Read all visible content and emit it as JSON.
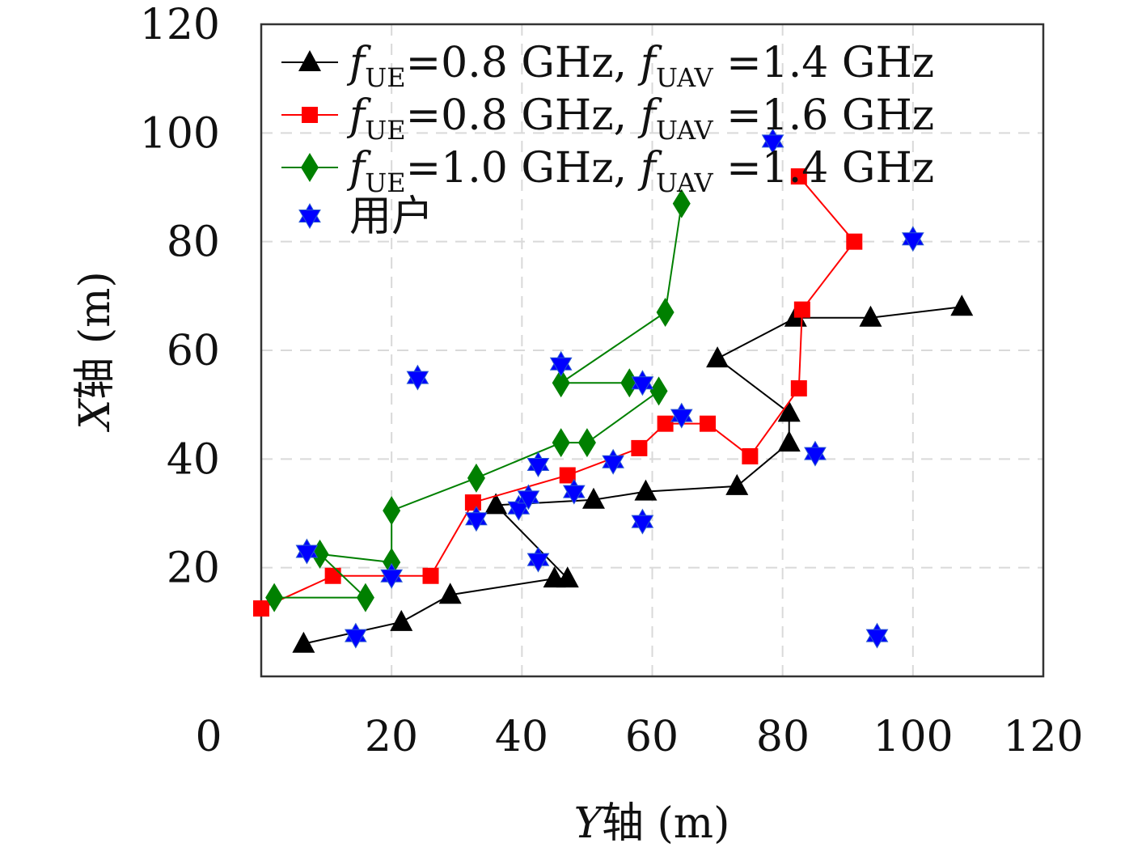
{
  "chart_data": {
    "type": "scatter",
    "xlabel": {
      "italic": "Y",
      "rest": "轴 (m)"
    },
    "ylabel": {
      "italic": "X",
      "rest": "轴 (m)"
    },
    "xlim": [
      0,
      120
    ],
    "ylim": [
      0,
      120
    ],
    "xticks": [
      "0",
      "20",
      "40",
      "60",
      "80",
      "100",
      "120"
    ],
    "yticks": [
      "20",
      "40",
      "60",
      "80",
      "100",
      "120"
    ],
    "grid": true,
    "legend_position": "top-right",
    "series": [
      {
        "legend": {
          "f1": "f",
          "s1": "UE",
          "mid": "=0.8 GHz, ",
          "f2": "f",
          "s2": "UAV",
          "tail": " =1.4 GHz"
        },
        "color": "#000000",
        "marker": "triangle",
        "connected": true,
        "points": [
          [
            6.5,
            6
          ],
          [
            21.5,
            10
          ],
          [
            29,
            15
          ],
          [
            45,
            18
          ],
          [
            47,
            18
          ],
          [
            36,
            31.5
          ],
          [
            51,
            32.5
          ],
          [
            59,
            34
          ],
          [
            73,
            35
          ],
          [
            81,
            43
          ],
          [
            81,
            48.5
          ],
          [
            70,
            58.5
          ],
          [
            82,
            66
          ],
          [
            93.5,
            66
          ],
          [
            107.5,
            68
          ]
        ]
      },
      {
        "legend": {
          "f1": "f",
          "s1": "UE",
          "mid": "=0.8 GHz, ",
          "f2": "f",
          "s2": "UAV",
          "tail": " =1.6 GHz"
        },
        "color": "#ff0000",
        "marker": "square",
        "connected": true,
        "points": [
          [
            0,
            12.5
          ],
          [
            11,
            18.5
          ],
          [
            26,
            18.5
          ],
          [
            32.5,
            32
          ],
          [
            47,
            37
          ],
          [
            58,
            42
          ],
          [
            62,
            46.5
          ],
          [
            68.5,
            46.5
          ],
          [
            75,
            40.5
          ],
          [
            82.5,
            53
          ],
          [
            83,
            67.5
          ],
          [
            91,
            80
          ],
          [
            82.5,
            92
          ]
        ]
      },
      {
        "legend": {
          "f1": "f",
          "s1": "UE",
          "mid": "=1.0 GHz, ",
          "f2": "f",
          "s2": "UAV",
          "tail": " =1.4 GHz"
        },
        "color": "#008000",
        "marker": "diamond",
        "connected": true,
        "points": [
          [
            2,
            14.5
          ],
          [
            16,
            14.5
          ],
          [
            9,
            22.5
          ],
          [
            20,
            21
          ],
          [
            20,
            30.5
          ],
          [
            33,
            36.5
          ],
          [
            46,
            43
          ],
          [
            50,
            43
          ],
          [
            61,
            52.5
          ],
          [
            56.5,
            54
          ],
          [
            46,
            54
          ],
          [
            62,
            67
          ],
          [
            64.5,
            87
          ]
        ]
      },
      {
        "legend": {
          "text": "用户"
        },
        "color": "#0000ff",
        "marker": "star",
        "connected": false,
        "points": [
          [
            7,
            23
          ],
          [
            14.5,
            7.5
          ],
          [
            20,
            18.5
          ],
          [
            24,
            55
          ],
          [
            33,
            29
          ],
          [
            39.5,
            31
          ],
          [
            41,
            33
          ],
          [
            42.5,
            39
          ],
          [
            42.5,
            21.5
          ],
          [
            46,
            57.5
          ],
          [
            48,
            34
          ],
          [
            54,
            39.5
          ],
          [
            58.5,
            54
          ],
          [
            58.5,
            28.5
          ],
          [
            64.5,
            48
          ],
          [
            78.5,
            98.5
          ],
          [
            85,
            41
          ],
          [
            94.5,
            7.5
          ],
          [
            100,
            80.5
          ]
        ]
      }
    ]
  }
}
